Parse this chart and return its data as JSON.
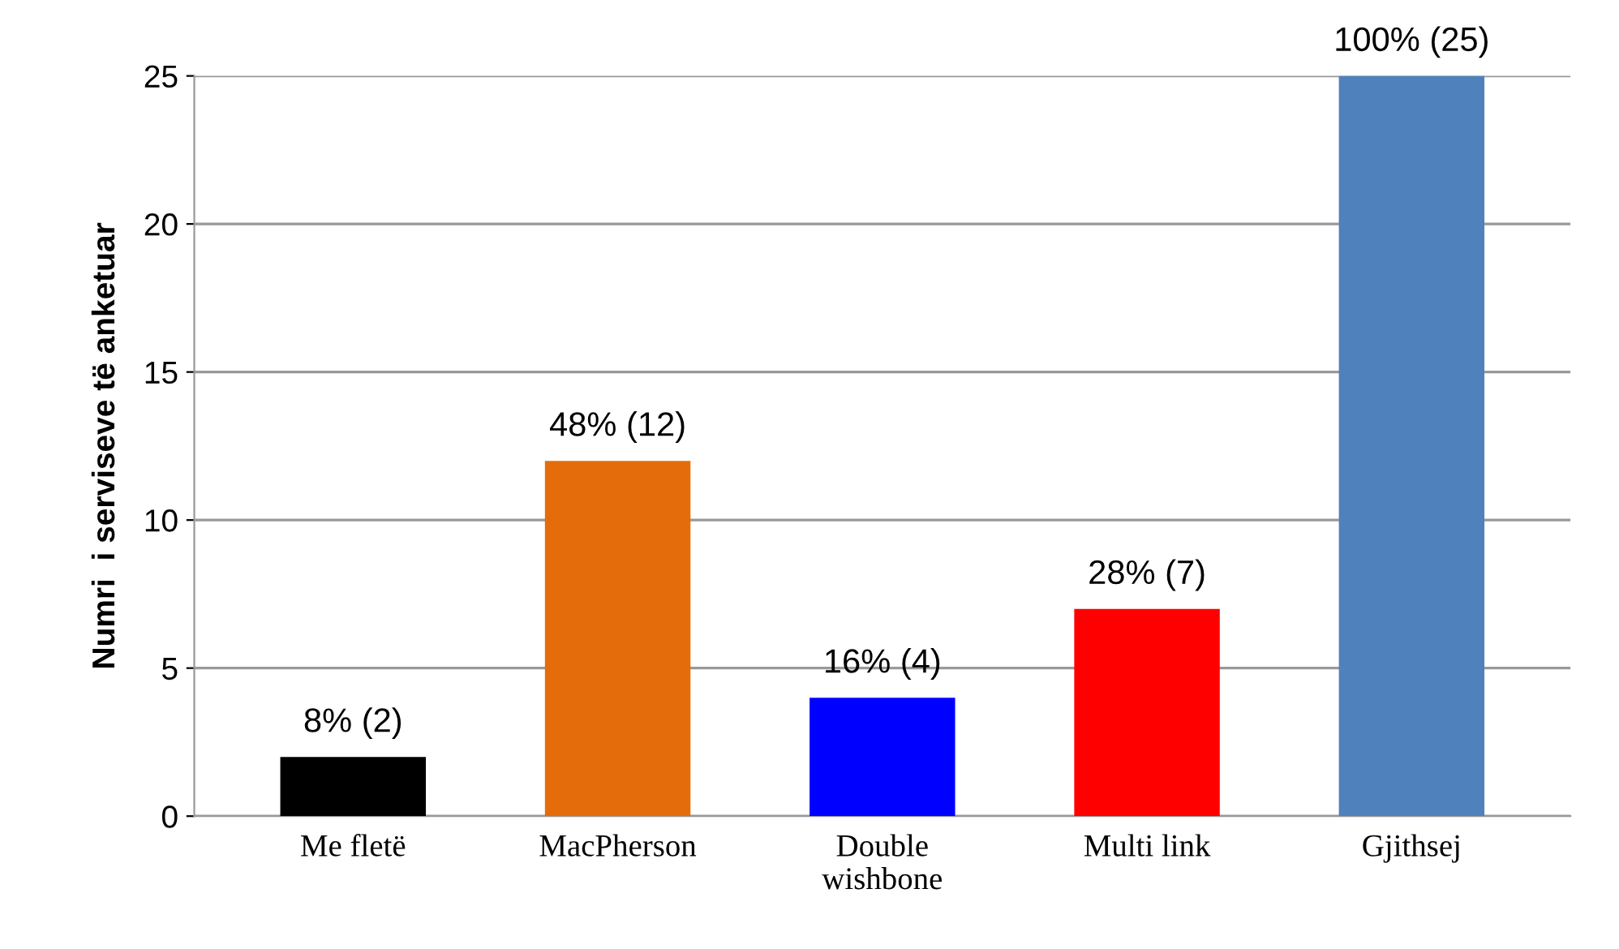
{
  "chart_data": {
    "type": "bar",
    "ylabel": "Numri  i serviseve të anketuar",
    "categories": [
      "Me fletë",
      "MacPherson",
      "Double\nwishbone",
      "Multi link",
      "Gjithsej"
    ],
    "values": [
      2,
      12,
      4,
      7,
      25
    ],
    "colors": [
      "#000000",
      "#e46c0a",
      "#0000ff",
      "#ff0000",
      "#4f81bd"
    ],
    "value_labels": [
      "8% (2)",
      "48% (12)",
      "16% (4)",
      "28% (7)",
      "100% (25)"
    ],
    "ylim": [
      0,
      25
    ],
    "yticks": [
      0,
      5,
      10,
      15,
      20,
      25
    ],
    "grid": "y"
  }
}
